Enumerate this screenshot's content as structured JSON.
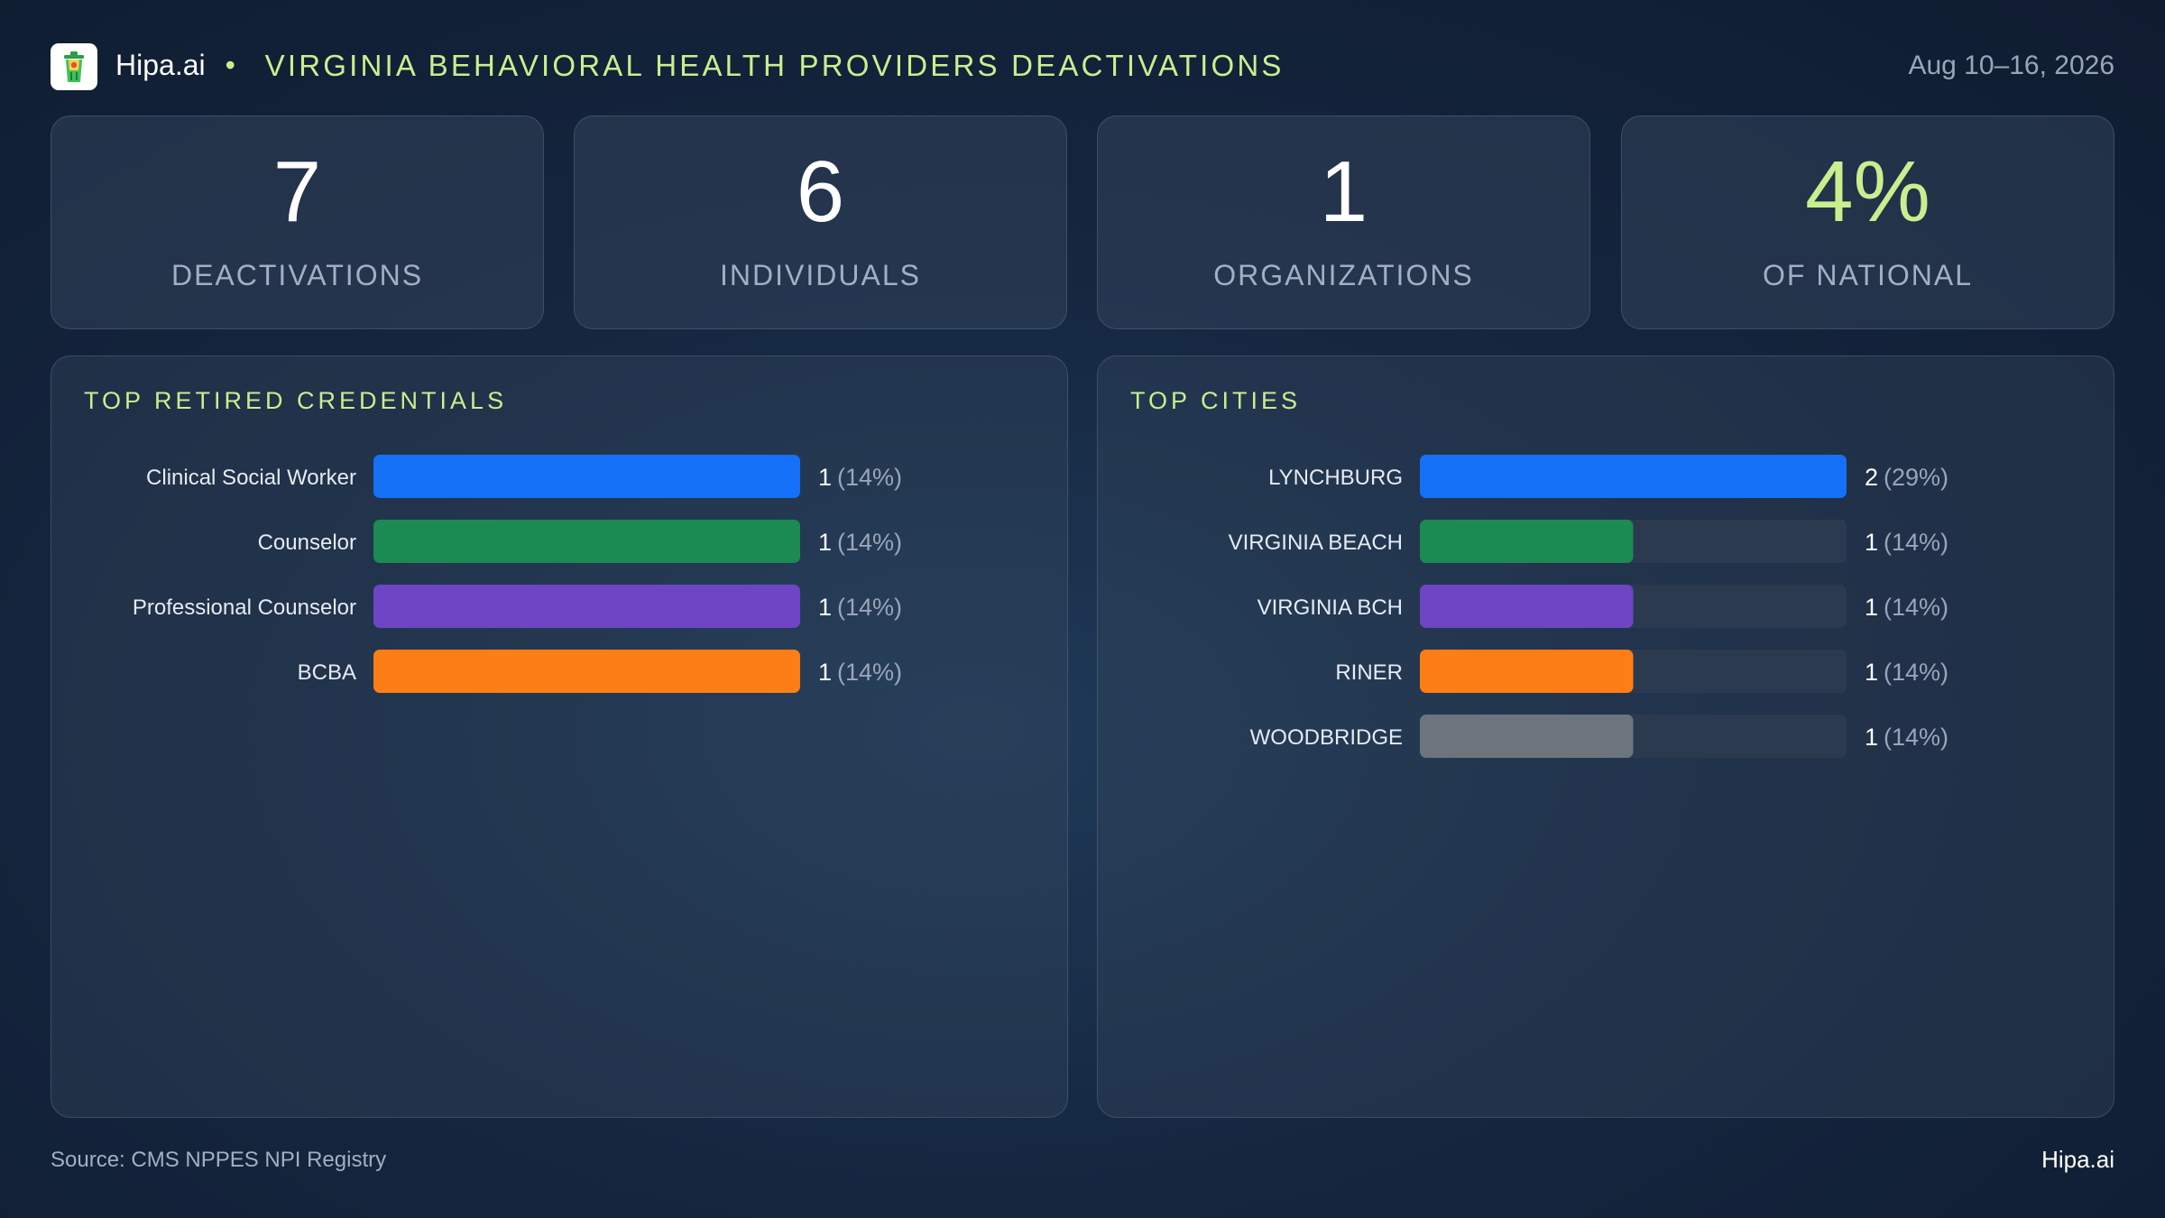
{
  "header": {
    "brand": "Hipa.ai",
    "separator": "•",
    "title": "VIRGINIA BEHAVIORAL HEALTH PROVIDERS DEACTIVATIONS",
    "date_range": "Aug 10–16, 2026",
    "logo_icon": "trash-can-icon"
  },
  "kpis": [
    {
      "value": "7",
      "label": "DEACTIVATIONS"
    },
    {
      "value": "6",
      "label": "INDIVIDUALS"
    },
    {
      "value": "1",
      "label": "ORGANIZATIONS"
    },
    {
      "value": "4%",
      "label": "OF NATIONAL"
    }
  ],
  "colors": {
    "accent": "#c8ef8e",
    "blue": "#1570f8",
    "green": "#1b8a53",
    "purple": "#6e45c4",
    "orange": "#fd7e14",
    "gray": "#6c757d",
    "track": "#2c3a4f"
  },
  "chart_data": [
    {
      "type": "bar",
      "orientation": "horizontal",
      "title": "TOP RETIRED CREDENTIALS",
      "categories": [
        "Clinical Social Worker",
        "Counselor",
        "Professional Counselor",
        "BCBA"
      ],
      "values": [
        1,
        1,
        1,
        1
      ],
      "value_labels": [
        "1",
        "1",
        "1",
        "1"
      ],
      "percent_labels": [
        "(14%)",
        "(14%)",
        "(14%)",
        "(14%)"
      ],
      "colors": [
        "#1570f8",
        "#1b8a53",
        "#6e45c4",
        "#fd7e14"
      ],
      "xlim": [
        0,
        1
      ]
    },
    {
      "type": "bar",
      "orientation": "horizontal",
      "title": "TOP CITIES",
      "categories": [
        "LYNCHBURG",
        "VIRGINIA BEACH",
        "VIRGINIA BCH",
        "RINER",
        "WOODBRIDGE"
      ],
      "values": [
        2,
        1,
        1,
        1,
        1
      ],
      "value_labels": [
        "2",
        "1",
        "1",
        "1",
        "1"
      ],
      "percent_labels": [
        "(29%)",
        "(14%)",
        "(14%)",
        "(14%)",
        "(14%)"
      ],
      "colors": [
        "#1570f8",
        "#1b8a53",
        "#6e45c4",
        "#fd7e14",
        "#6c757d"
      ],
      "xlim": [
        0,
        2
      ]
    }
  ],
  "footer": {
    "source": "Source: CMS NPPES NPI Registry",
    "brand": "Hipa.ai"
  }
}
